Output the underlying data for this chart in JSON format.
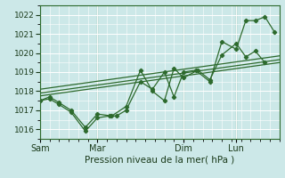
{
  "xlabel": "Pression niveau de la mer( hPa )",
  "bg_color": "#cce8e8",
  "grid_color": "#aacccc",
  "line_color": "#2d6a2d",
  "ylim": [
    1015.5,
    1022.5
  ],
  "yticks": [
    1016,
    1017,
    1018,
    1019,
    1020,
    1021,
    1022
  ],
  "xlim": [
    0,
    100
  ],
  "day_positions": [
    0,
    24,
    60,
    82
  ],
  "day_labels": [
    "Sam",
    "Mar",
    "Dim",
    "Lun"
  ],
  "jagged1_x": [
    0,
    4,
    8,
    13,
    19,
    24,
    29,
    32,
    36,
    42,
    47,
    52,
    56,
    60,
    65,
    71,
    76,
    82,
    86,
    90,
    94,
    98
  ],
  "jagged1_y": [
    1017.5,
    1017.6,
    1017.3,
    1016.9,
    1015.9,
    1016.6,
    1016.7,
    1016.7,
    1017.0,
    1018.5,
    1018.1,
    1019.0,
    1017.7,
    1019.0,
    1019.1,
    1018.5,
    1020.6,
    1020.2,
    1021.7,
    1021.7,
    1021.9,
    1021.1
  ],
  "jagged2_x": [
    0,
    4,
    8,
    13,
    19,
    24,
    30,
    36,
    42,
    47,
    52,
    56,
    60,
    66,
    71,
    76,
    82,
    86,
    90,
    94
  ],
  "jagged2_y": [
    1017.5,
    1017.7,
    1017.4,
    1017.0,
    1016.1,
    1016.8,
    1016.7,
    1017.2,
    1019.1,
    1018.0,
    1017.5,
    1019.2,
    1018.7,
    1019.1,
    1018.6,
    1019.9,
    1020.5,
    1019.8,
    1020.1,
    1019.5
  ],
  "trend1_x": [
    0,
    100
  ],
  "trend1_y": [
    1017.75,
    1019.5
  ],
  "trend2_x": [
    0,
    100
  ],
  "trend2_y": [
    1017.9,
    1019.65
  ],
  "trend3_x": [
    0,
    100
  ],
  "trend3_y": [
    1018.1,
    1019.85
  ]
}
